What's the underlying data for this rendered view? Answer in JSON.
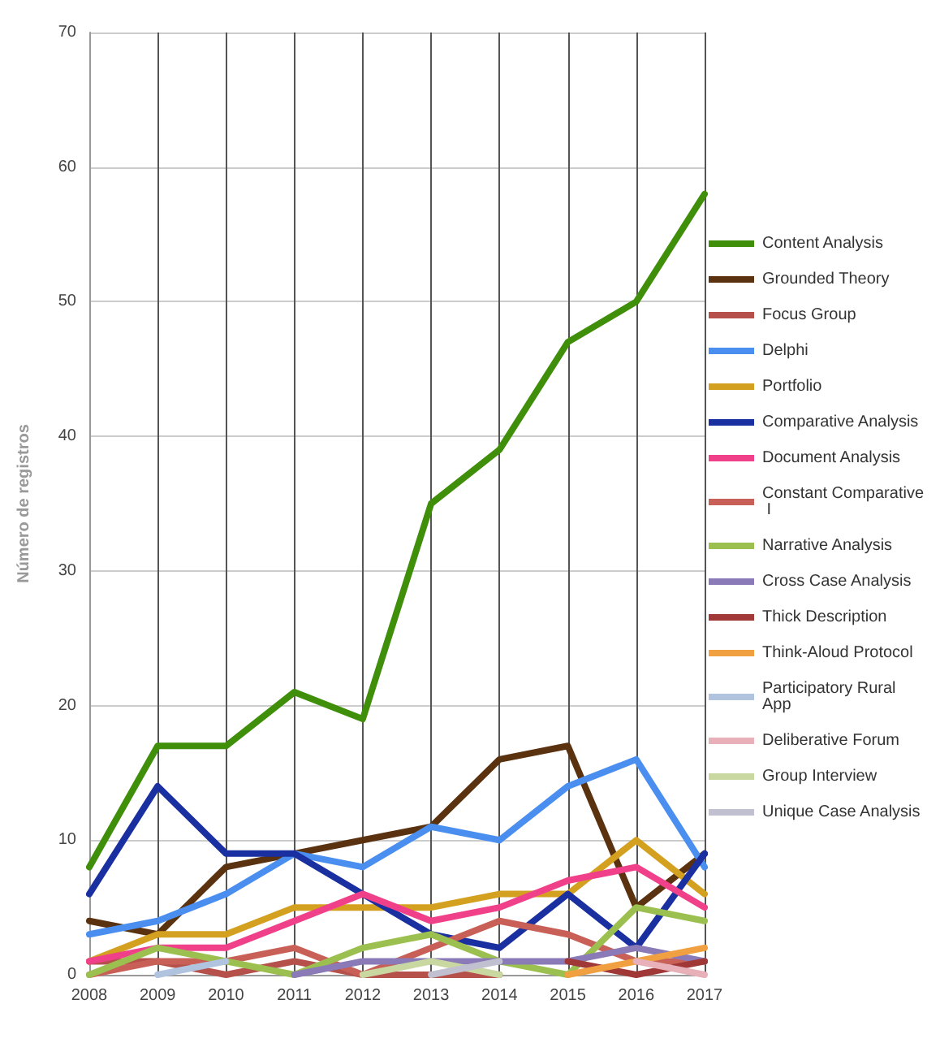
{
  "chart_data": {
    "type": "line",
    "ylabel": "Número de registros",
    "categories": [
      "2008",
      "2009",
      "2010",
      "2011",
      "2012",
      "2013",
      "2014",
      "2015",
      "2016",
      "2017"
    ],
    "ylim": [
      0,
      70
    ],
    "yticks": [
      0,
      10,
      20,
      30,
      40,
      50,
      60,
      70
    ],
    "grid": true,
    "legend": "right",
    "marker": "none",
    "line_style": "solid",
    "series": [
      {
        "name": "Content Analysis",
        "color": "#3f8f0a",
        "values": [
          8,
          17,
          17,
          21,
          19,
          35,
          39,
          47,
          50,
          58
        ]
      },
      {
        "name": "Grounded Theory",
        "color": "#5a3210",
        "values": [
          4,
          3,
          8,
          9,
          10,
          11,
          16,
          17,
          5,
          9
        ]
      },
      {
        "name": "Focus Group",
        "color": "#b5504a",
        "values": [
          1,
          1,
          0,
          1,
          0,
          0,
          0,
          null,
          null,
          null
        ]
      },
      {
        "name": "Delphi",
        "color": "#4a8ff0",
        "values": [
          3,
          4,
          6,
          9,
          8,
          11,
          10,
          14,
          16,
          8
        ]
      },
      {
        "name": "Portfolio",
        "color": "#d4a020",
        "values": [
          1,
          3,
          3,
          5,
          5,
          5,
          6,
          6,
          10,
          6
        ]
      },
      {
        "name": "Comparative Analysis",
        "color": "#1a2fa0",
        "values": [
          6,
          14,
          9,
          9,
          6,
          3,
          2,
          6,
          2,
          9
        ]
      },
      {
        "name": "Document Analysis",
        "color": "#f0408a",
        "values": [
          1,
          2,
          2,
          4,
          6,
          4,
          5,
          7,
          8,
          5
        ]
      },
      {
        "name": "Constant Comparative I",
        "color": "#c86058",
        "values": [
          0,
          1,
          1,
          2,
          0,
          2,
          4,
          3,
          1,
          1
        ]
      },
      {
        "name": "Narrative Analysis",
        "color": "#9cc050",
        "values": [
          0,
          2,
          1,
          0,
          2,
          3,
          1,
          0,
          5,
          4
        ]
      },
      {
        "name": "Cross Case Analysis",
        "color": "#8a7ab8",
        "values": [
          null,
          null,
          null,
          0,
          1,
          1,
          1,
          1,
          2,
          1
        ]
      },
      {
        "name": "Thick Description",
        "color": "#a03838",
        "values": [
          null,
          null,
          null,
          null,
          null,
          null,
          null,
          1,
          0,
          1
        ]
      },
      {
        "name": "Think-Aloud Protocol",
        "color": "#f0a040",
        "values": [
          null,
          null,
          null,
          null,
          null,
          null,
          null,
          0,
          1,
          2
        ]
      },
      {
        "name": "Participatory Rural App",
        "color": "#b0c4e0",
        "values": [
          null,
          0,
          1,
          null,
          null,
          null,
          null,
          null,
          null,
          null
        ]
      },
      {
        "name": "Deliberative Forum",
        "color": "#e8b0b8",
        "values": [
          null,
          null,
          null,
          null,
          null,
          null,
          null,
          null,
          1,
          0
        ]
      },
      {
        "name": "Group Interview",
        "color": "#c8d8a0",
        "values": [
          null,
          null,
          null,
          null,
          0,
          1,
          0,
          null,
          null,
          null
        ]
      },
      {
        "name": "Unique Case Analysis",
        "color": "#c0c0d0",
        "values": [
          null,
          null,
          null,
          null,
          null,
          0,
          1,
          null,
          null,
          null
        ]
      }
    ]
  }
}
